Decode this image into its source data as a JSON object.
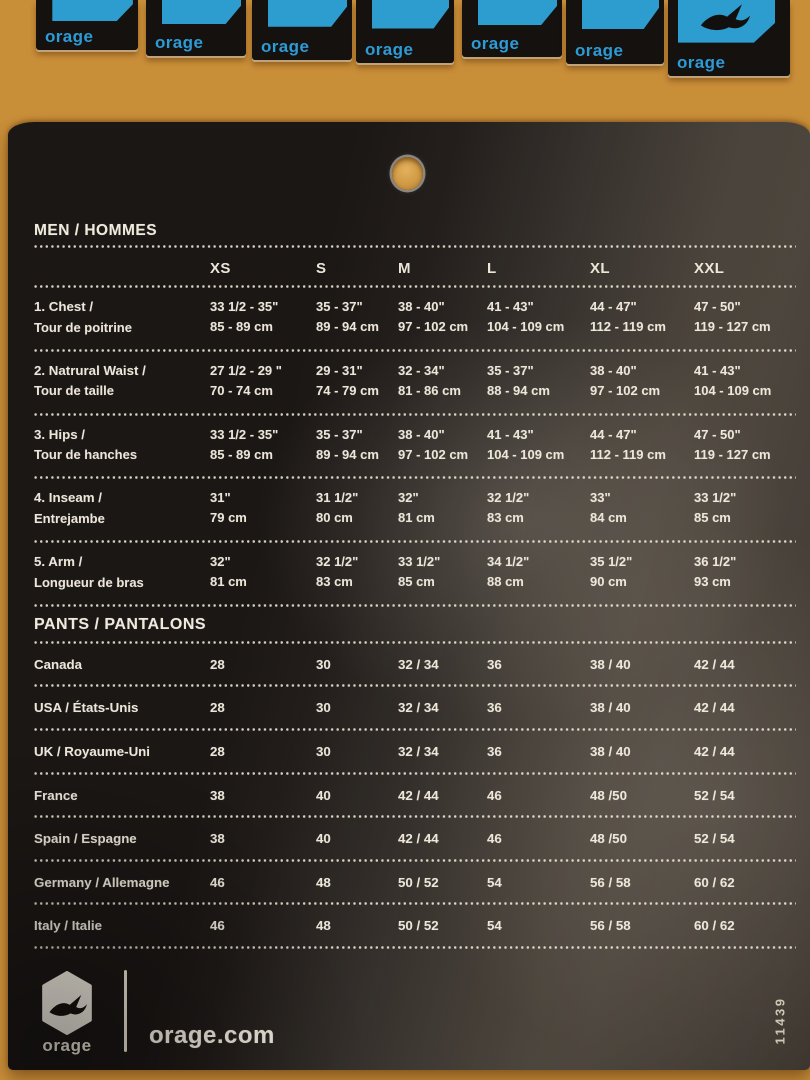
{
  "top_strip": {
    "tags": [
      {
        "label": "orage"
      },
      {
        "label": "orage"
      },
      {
        "label": "orage"
      },
      {
        "label": "orage"
      },
      {
        "label": "orage"
      },
      {
        "label": "orage"
      },
      {
        "label": "orage"
      }
    ],
    "brand_blue": "#2d9bd6"
  },
  "tag": {
    "men": {
      "title": "MEN / HOMMES",
      "columns": [
        "XS",
        "S",
        "M",
        "L",
        "XL",
        "XXL"
      ],
      "rows": [
        {
          "label": "1. Chest /",
          "label_fr": "Tour de poitrine",
          "inches": [
            "33 1/2 - 35\"",
            "35 - 37\"",
            "38 - 40\"",
            "41 - 43\"",
            "44 - 47\"",
            "47 - 50\""
          ],
          "cm": [
            "85 - 89 cm",
            "89 - 94 cm",
            "97 - 102 cm",
            "104 - 109 cm",
            "112 - 119 cm",
            "119 - 127 cm"
          ]
        },
        {
          "label": "2. Natrural Waist /",
          "label_fr": "Tour de taille",
          "inches": [
            "27 1/2 - 29 \"",
            "29 - 31\"",
            "32 - 34\"",
            "35 - 37\"",
            "38 - 40\"",
            "41 - 43\""
          ],
          "cm": [
            "70 - 74 cm",
            "74 - 79 cm",
            "81 - 86 cm",
            "88 - 94 cm",
            "97 - 102 cm",
            "104 - 109 cm"
          ]
        },
        {
          "label": "3. Hips /",
          "label_fr": "Tour de hanches",
          "inches": [
            "33 1/2 - 35\"",
            "35 - 37\"",
            "38 - 40\"",
            "41 - 43\"",
            "44 - 47\"",
            "47 - 50\""
          ],
          "cm": [
            "85 - 89 cm",
            "89 - 94 cm",
            "97 - 102 cm",
            "104 - 109 cm",
            "112 - 119 cm",
            "119 - 127 cm"
          ]
        },
        {
          "label": "4. Inseam /",
          "label_fr": "Entrejambe",
          "inches": [
            "31\"",
            "31 1/2\"",
            "32\"",
            "32 1/2\"",
            "33\"",
            "33 1/2\""
          ],
          "cm": [
            "79 cm",
            "80 cm",
            "81 cm",
            "83 cm",
            "84 cm",
            "85 cm"
          ]
        },
        {
          "label": "5. Arm /",
          "label_fr": "Longueur de bras",
          "inches": [
            "32\"",
            "32 1/2\"",
            "33 1/2\"",
            "34 1/2\"",
            "35 1/2\"",
            "36 1/2\""
          ],
          "cm": [
            "81 cm",
            "83 cm",
            "85 cm",
            "88 cm",
            "90 cm",
            "93 cm"
          ]
        }
      ]
    },
    "pants": {
      "title": "PANTS / PANTALONS",
      "rows": [
        {
          "label": "Canada",
          "values": [
            "28",
            "30",
            "32 / 34",
            "36",
            "38 / 40",
            "42 / 44"
          ]
        },
        {
          "label": "USA / États-Unis",
          "values": [
            "28",
            "30",
            "32 / 34",
            "36",
            "38 / 40",
            "42 / 44"
          ]
        },
        {
          "label": "UK / Royaume-Uni",
          "values": [
            "28",
            "30",
            "32 / 34",
            "36",
            "38 / 40",
            "42 / 44"
          ]
        },
        {
          "label": "France",
          "values": [
            "38",
            "40",
            "42 / 44",
            "46",
            "48 /50",
            "52 / 54"
          ]
        },
        {
          "label": "Spain / Espagne",
          "values": [
            "38",
            "40",
            "42 / 44",
            "46",
            "48 /50",
            "52 / 54"
          ]
        },
        {
          "label": "Germany / Allemagne",
          "values": [
            "46",
            "48",
            "50 / 52",
            "54",
            "56 / 58",
            "60 / 62"
          ]
        },
        {
          "label": "Italy / Italie",
          "values": [
            "46",
            "48",
            "50 / 52",
            "54",
            "56 / 58",
            "60 / 62"
          ]
        }
      ]
    },
    "footer": {
      "logo_text": "orage",
      "website": "orage.com"
    },
    "item_number": "11439"
  }
}
